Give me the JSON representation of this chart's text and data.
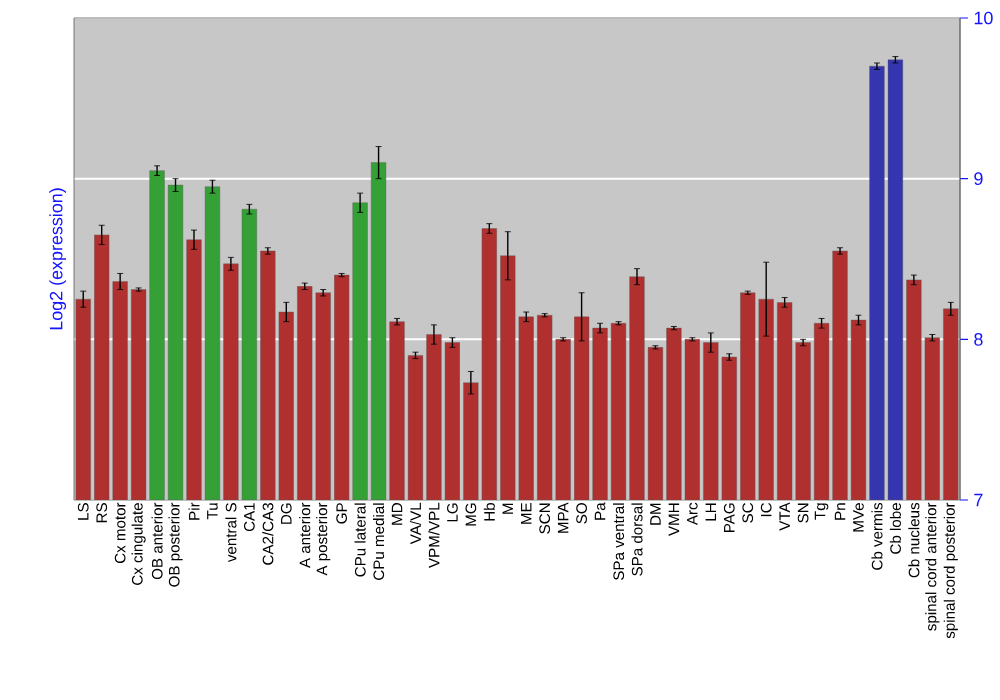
{
  "chart_data": {
    "type": "bar",
    "ylabel": "Log2 (expression)",
    "categories": [
      "LS",
      "RS",
      "Cx motor",
      "Cx cingulate",
      "OB anterior",
      "OB posterior",
      "Pir",
      "Tu",
      "ventral S",
      "CA1",
      "CA2/CA3",
      "DG",
      "A anterior",
      "A posterior",
      "GP",
      "CPu lateral",
      "CPu medial",
      "MD",
      "VA/VL",
      "VPM/VPL",
      "LG",
      "MG",
      "Hb",
      "M",
      "ME",
      "SCN",
      "MPA",
      "SO",
      "Pa",
      "SPa ventral",
      "SPa dorsal",
      "DM",
      "VMH",
      "Arc",
      "LH",
      "PAG",
      "SC",
      "IC",
      "VTA",
      "SN",
      "Tg",
      "Pn",
      "MVe",
      "Cb vermis",
      "Cb lobe",
      "Cb nucleus",
      "spinal cord anterior",
      "spinal cord posterior"
    ],
    "values": [
      8.25,
      8.65,
      8.36,
      8.31,
      9.05,
      8.96,
      8.62,
      8.95,
      8.47,
      8.81,
      8.55,
      8.17,
      8.33,
      8.29,
      8.4,
      8.85,
      9.1,
      8.11,
      7.9,
      8.03,
      7.98,
      7.73,
      8.69,
      8.52,
      8.14,
      8.15,
      8.0,
      8.14,
      8.07,
      8.1,
      8.39,
      7.95,
      8.07,
      8.0,
      7.98,
      7.89,
      8.29,
      8.25,
      8.23,
      7.98,
      8.1,
      8.55,
      8.12,
      9.7,
      9.74,
      8.37,
      8.01,
      8.19
    ],
    "errors": [
      0.05,
      0.06,
      0.05,
      0.01,
      0.03,
      0.04,
      0.06,
      0.04,
      0.04,
      0.03,
      0.02,
      0.06,
      0.02,
      0.02,
      0.01,
      0.06,
      0.1,
      0.02,
      0.02,
      0.06,
      0.03,
      0.07,
      0.03,
      0.15,
      0.03,
      0.01,
      0.01,
      0.15,
      0.03,
      0.01,
      0.05,
      0.01,
      0.01,
      0.01,
      0.06,
      0.02,
      0.01,
      0.23,
      0.03,
      0.02,
      0.03,
      0.02,
      0.03,
      0.02,
      0.02,
      0.03,
      0.02,
      0.04
    ],
    "colors": [
      "#b03030",
      "#b03030",
      "#b03030",
      "#b03030",
      "#35a035",
      "#35a035",
      "#b03030",
      "#35a035",
      "#b03030",
      "#35a035",
      "#b03030",
      "#b03030",
      "#b03030",
      "#b03030",
      "#b03030",
      "#35a035",
      "#35a035",
      "#b03030",
      "#b03030",
      "#b03030",
      "#b03030",
      "#b03030",
      "#b03030",
      "#b03030",
      "#b03030",
      "#b03030",
      "#b03030",
      "#b03030",
      "#b03030",
      "#b03030",
      "#b03030",
      "#b03030",
      "#b03030",
      "#b03030",
      "#b03030",
      "#b03030",
      "#b03030",
      "#b03030",
      "#b03030",
      "#b03030",
      "#b03030",
      "#b03030",
      "#b03030",
      "#3535b0",
      "#3535b0",
      "#b03030",
      "#b03030",
      "#b03030"
    ],
    "ylim": [
      7,
      10
    ],
    "yticks": [
      7,
      8,
      9,
      10
    ],
    "grid": "y"
  }
}
